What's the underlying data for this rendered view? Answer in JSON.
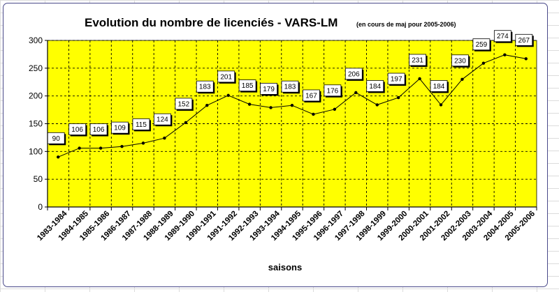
{
  "chart_data": {
    "type": "line",
    "title": "Evolution du nombre de licenciés - VARS-LM",
    "subtitle": "(en cours de maj pour 2005-2006)",
    "xlabel": "saisons",
    "ylabel": "",
    "ylim": [
      0,
      300
    ],
    "yticks": [
      0,
      50,
      100,
      150,
      200,
      250,
      300
    ],
    "grid": true,
    "legend": "none",
    "plot_background": "#ffff00",
    "line_color": "#000000",
    "categories": [
      "1983-1984",
      "1984-1985",
      "1985-1986",
      "1986-1987",
      "1987-1988",
      "1988-1989",
      "1989-1990",
      "1990-1991",
      "1991-1992",
      "1992-1993",
      "1993-1994",
      "1994-1995",
      "1995-1996",
      "1996-1997",
      "1997-1998",
      "1998-1999",
      "1999-2000",
      "2000-2001",
      "2001-2002",
      "2002-2003",
      "2003-2004",
      "2004-2005",
      "2005-2006"
    ],
    "series": [
      {
        "values": [
          90,
          106,
          106,
          109,
          115,
          124,
          152,
          183,
          201,
          185,
          179,
          183,
          167,
          176,
          206,
          184,
          197,
          231,
          184,
          230,
          259,
          274,
          267
        ]
      }
    ]
  }
}
